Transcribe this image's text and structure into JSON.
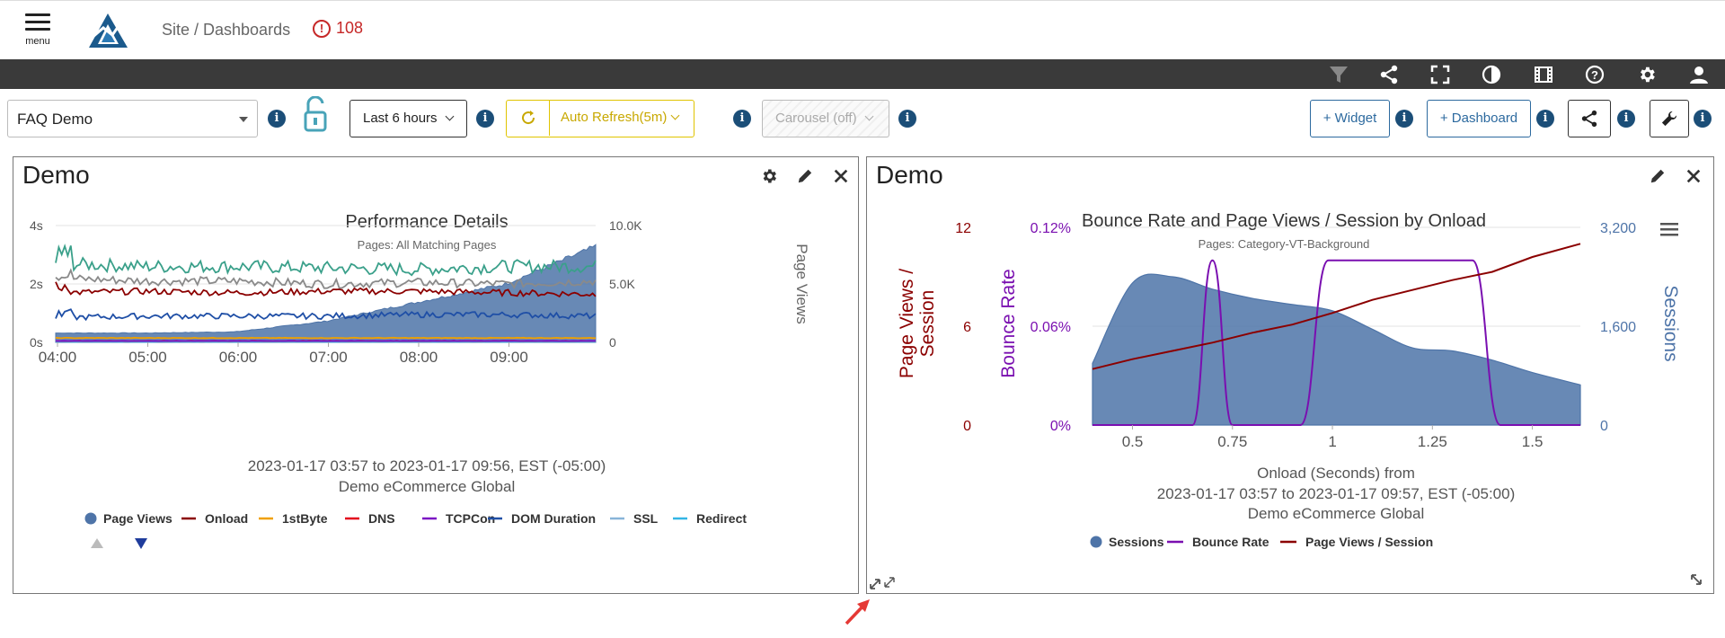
{
  "header": {
    "menu_label": "menu",
    "breadcrumb": "Site / Dashboards",
    "alert_count": "108"
  },
  "topbar_icons": [
    "filter-icon",
    "share-icon",
    "fullscreen-icon",
    "contrast-icon",
    "slideshow-icon",
    "help-icon",
    "settings-icon",
    "user-icon"
  ],
  "controls": {
    "dashboard_select": "FAQ Demo",
    "time_range": "Last 6 hours",
    "auto_refresh": "Auto Refresh(5m)",
    "carousel": "Carousel (off)",
    "add_widget": "+ Widget",
    "add_dashboard": "+ Dashboard",
    "info_glyph": "i"
  },
  "colors": {
    "page_views": "#4e74a8",
    "onload": "#8b0000",
    "firstbyte": "#f0a000",
    "dns": "#e3001b",
    "tcpcon": "#7b12c4",
    "dom_duration": "#1f4fa6",
    "ssl": "#88b4d8",
    "redirect": "#33b5e5",
    "teal_line": "#3aa08a",
    "gray_line": "#8a8a8a",
    "bounce_rate": "#7a0fb0",
    "sessions": "#4e74a8",
    "pv_per_session": "#8b0000"
  },
  "panel_left": {
    "title": "Demo",
    "chart_title": "Performance Details",
    "subtitle": "Pages: All Matching Pages",
    "caption_line1": "2023-01-17 03:57 to 2023-01-17 09:56, EST (-05:00)",
    "caption_line2": "Demo eCommerce Global",
    "y_left_ticks": [
      "4s",
      "2s",
      "0s"
    ],
    "y_right_ticks": [
      "10.0K",
      "5.0K",
      "0"
    ],
    "y_right_label": "Page Views",
    "x_ticks": [
      "04:00",
      "05:00",
      "06:00",
      "07:00",
      "08:00",
      "09:00"
    ],
    "legend": [
      "Page Views",
      "Onload",
      "1stByte",
      "DNS",
      "TCPCon",
      "DOM Duration",
      "SSL",
      "Redirect"
    ]
  },
  "panel_right": {
    "title": "Demo",
    "chart_title": "Bounce Rate and Page Views / Session by Onload",
    "subtitle": "Pages: Category-VT-Background",
    "caption_line1": "Onload (Seconds) from",
    "caption_line2": "2023-01-17 03:57 to 2023-01-17 09:57, EST (-05:00)",
    "caption_line3": "Demo eCommerce Global",
    "pv_ticks": [
      "12",
      "6",
      "0"
    ],
    "br_ticks": [
      "0.12%",
      "0.06%",
      "0%"
    ],
    "sessions_ticks": [
      "3,200",
      "1,600",
      "0"
    ],
    "pv_label_line1": "Page Views /",
    "pv_label_line2": "Session",
    "br_label": "Bounce Rate",
    "sessions_label": "Sessions",
    "x_ticks": [
      "0.5",
      "0.75",
      "1",
      "1.25",
      "1.5"
    ],
    "legend": [
      "Sessions",
      "Bounce Rate",
      "Page Views / Session"
    ]
  },
  "chart_data": [
    {
      "type": "line",
      "title": "Performance Details",
      "subtitle": "Pages: All Matching Pages",
      "x": [
        "04:00",
        "05:00",
        "06:00",
        "07:00",
        "08:00",
        "09:00",
        "09:56"
      ],
      "ylabel_left": "",
      "ylabel_right": "Page Views",
      "ylim_left": [
        0,
        4
      ],
      "ylim_right": [
        0,
        10000
      ],
      "series": [
        {
          "name": "Page Views",
          "kind": "area",
          "axis": "right",
          "values": [
            800,
            800,
            900,
            1800,
            3400,
            5000,
            8200
          ]
        },
        {
          "name": "Onload",
          "axis": "left",
          "values": [
            1.7,
            1.75,
            1.7,
            1.75,
            1.75,
            1.7,
            1.65
          ]
        },
        {
          "name": "1stByte",
          "axis": "left",
          "values": [
            0.15,
            0.15,
            0.15,
            0.15,
            0.15,
            0.15,
            0.15
          ]
        },
        {
          "name": "DNS",
          "axis": "left",
          "values": [
            0.05,
            0.05,
            0.05,
            0.05,
            0.05,
            0.05,
            0.05
          ]
        },
        {
          "name": "TCPCon",
          "axis": "left",
          "values": [
            0.05,
            0.05,
            0.05,
            0.05,
            0.05,
            0.05,
            0.05
          ]
        },
        {
          "name": "DOM Duration",
          "axis": "left",
          "values": [
            0.85,
            0.9,
            0.9,
            0.9,
            0.95,
            0.95,
            0.9
          ]
        },
        {
          "name": "SSL",
          "axis": "left",
          "values": [
            0.05,
            0.05,
            0.05,
            0.05,
            0.05,
            0.05,
            0.05
          ]
        },
        {
          "name": "Redirect",
          "axis": "left",
          "values": [
            0.02,
            0.02,
            0.02,
            0.02,
            0.02,
            0.02,
            0.02
          ]
        },
        {
          "kind": "line",
          "color_key": "teal_line",
          "axis": "left",
          "values": [
            2.7,
            2.6,
            2.6,
            2.55,
            2.5,
            2.6,
            2.6
          ]
        },
        {
          "kind": "line",
          "color_key": "gray_line",
          "axis": "left",
          "values": [
            2.2,
            2.1,
            2.1,
            2.0,
            2.05,
            2.0,
            2.1
          ]
        }
      ]
    },
    {
      "type": "line",
      "title": "Bounce Rate and Page Views / Session by Onload",
      "subtitle": "Pages: Category-VT-Background",
      "xlabel": "Onload (Seconds)",
      "xlim": [
        0.4,
        1.62
      ],
      "x": [
        0.4,
        0.5,
        0.6,
        0.7,
        0.8,
        0.9,
        1.0,
        1.1,
        1.2,
        1.3,
        1.4,
        1.5,
        1.62
      ],
      "series": [
        {
          "name": "Sessions",
          "kind": "area",
          "axis": "sessions",
          "ylim": [
            0,
            3200
          ],
          "values": [
            1000,
            2300,
            2400,
            2200,
            2050,
            1950,
            1850,
            1550,
            1250,
            1200,
            1050,
            850,
            650
          ]
        },
        {
          "name": "Bounce Rate",
          "axis": "bounce",
          "ylim": [
            0,
            0.12
          ],
          "unit": "%",
          "points": [
            [
              0.4,
              0
            ],
            [
              0.65,
              0
            ],
            [
              0.7,
              0.1
            ],
            [
              0.75,
              0
            ],
            [
              0.92,
              0
            ],
            [
              0.99,
              0.1
            ],
            [
              1.35,
              0.1
            ],
            [
              1.42,
              0
            ],
            [
              1.62,
              0
            ]
          ]
        },
        {
          "name": "Page Views / Session",
          "axis": "pv",
          "ylim": [
            0,
            12
          ],
          "values": [
            3.4,
            4.0,
            4.5,
            5.0,
            5.6,
            6.1,
            6.8,
            7.6,
            8.2,
            8.8,
            9.3,
            10.2,
            11.0
          ]
        }
      ]
    }
  ]
}
